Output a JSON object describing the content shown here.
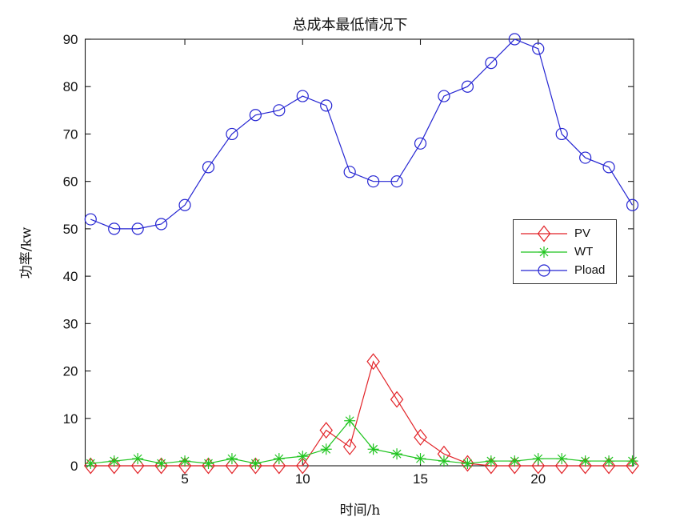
{
  "chart_data": {
    "type": "line",
    "title": "总成本最低情况下",
    "xlabel": "时间/h",
    "ylabel": "功率/kw",
    "xlim": [
      0.77,
      24.05
    ],
    "ylim": [
      0,
      90
    ],
    "xticks": [
      5,
      10,
      15,
      20
    ],
    "yticks": [
      0,
      10,
      20,
      30,
      40,
      50,
      60,
      70,
      80,
      90
    ],
    "grid": false,
    "legend_position": "inside-middle-right",
    "x": [
      1,
      2,
      3,
      4,
      5,
      6,
      7,
      8,
      9,
      10,
      11,
      12,
      13,
      14,
      15,
      16,
      17,
      18,
      19,
      20,
      21,
      22,
      23,
      24
    ],
    "series": [
      {
        "name": "PV",
        "color": "#e22227",
        "marker": "diamond",
        "values": [
          0,
          0,
          0,
          0,
          0,
          0,
          0,
          0,
          0,
          0,
          7.5,
          4,
          22,
          14,
          6,
          2.5,
          0.5,
          0,
          0,
          0,
          0,
          0,
          0,
          0
        ]
      },
      {
        "name": "WT",
        "color": "#1ec41e",
        "marker": "asterisk",
        "values": [
          0.5,
          1,
          1.5,
          0.5,
          1,
          0.5,
          1.5,
          0.5,
          1.5,
          2,
          3.5,
          9.5,
          3.5,
          2.5,
          1.5,
          1,
          0.5,
          1,
          1,
          1.5,
          1.5,
          1,
          1,
          1
        ]
      },
      {
        "name": "Pload",
        "color": "#2525d2",
        "marker": "circle",
        "values": [
          52,
          50,
          50,
          51,
          55,
          63,
          70,
          74,
          75,
          78,
          76,
          62,
          60,
          60,
          68,
          78,
          80,
          85,
          90,
          88,
          70,
          65,
          63,
          55
        ]
      }
    ]
  }
}
